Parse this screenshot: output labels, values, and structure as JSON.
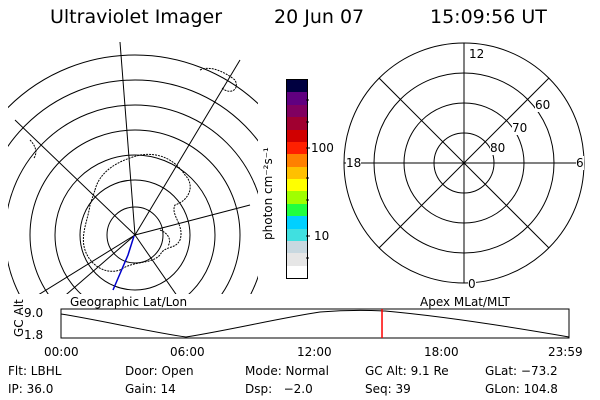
{
  "header": {
    "title": "Ultraviolet Imager",
    "date": "20 Jun 07",
    "time": "15:09:56 UT"
  },
  "left_map": {
    "caption": "Geographic Lat/Lon"
  },
  "colorbar": {
    "unit_label": "photon cm⁻²s⁻¹",
    "ticks": [
      "100",
      "10"
    ],
    "colors": [
      "#ffffff",
      "#e6e6e6",
      "#c8d8e0",
      "#40e0e0",
      "#00d0ff",
      "#20ff40",
      "#a0ff00",
      "#ffff00",
      "#ffc000",
      "#ff8000",
      "#ff2000",
      "#d00000",
      "#a00030",
      "#800060",
      "#600080",
      "#000040"
    ]
  },
  "polar_plot": {
    "caption": "Apex MLat/MLT",
    "mlt_labels": {
      "top": "12",
      "left": "18",
      "right": "6",
      "bottom": "0"
    },
    "lat_labels": [
      "60",
      "70",
      "80"
    ]
  },
  "timeline": {
    "y_label": "GC Alt",
    "y_ticks": [
      "9.0",
      "1.8"
    ],
    "x_ticks": [
      "00:00",
      "06:00",
      "12:00",
      "18:00",
      "23:59"
    ],
    "cursor_hour": 15.166
  },
  "status": {
    "rows": [
      [
        "Flt: LBHL",
        "Door: Open",
        "Mode: Normal",
        "GC Alt: 9.1 Re",
        "GLat: −73.2"
      ],
      [
        "IP: 36.0",
        "Gain: 14",
        "Dsp:   −2.0",
        "Seq: 39",
        "GLon: 104.8"
      ]
    ]
  }
}
